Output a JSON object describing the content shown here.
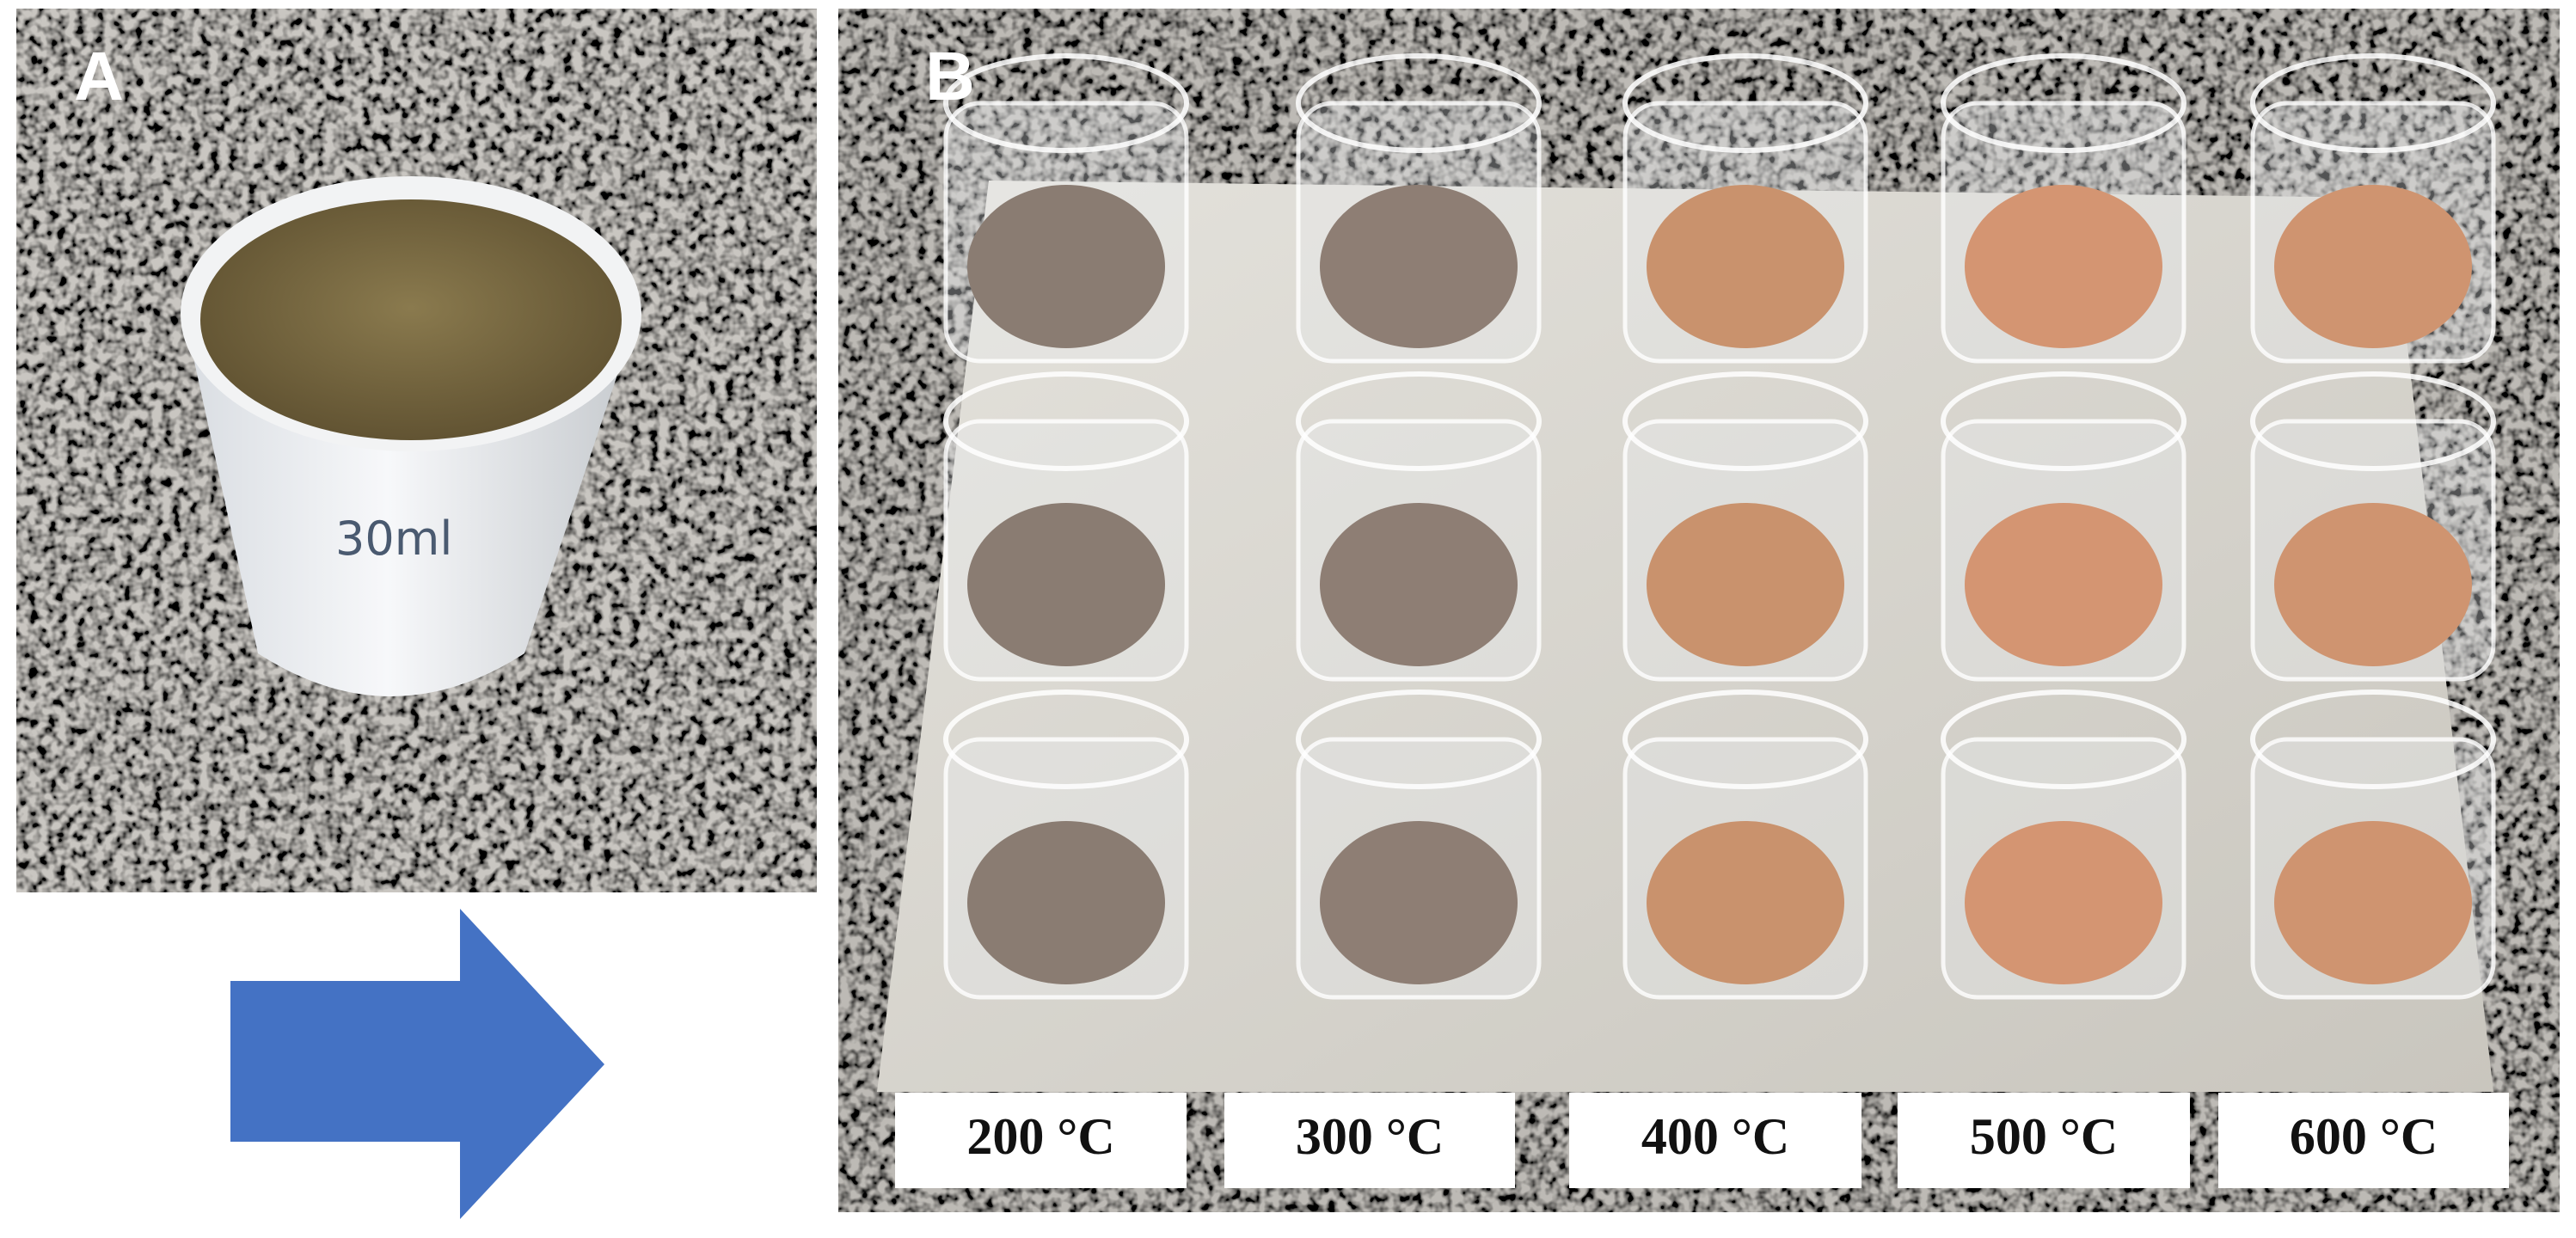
{
  "panels": [
    {
      "label": "A"
    },
    {
      "label": "B",
      "temperatures": [
        "200 °C",
        "300 °C",
        "400 °C",
        "500 °C",
        "600 °C"
      ]
    }
  ]
}
